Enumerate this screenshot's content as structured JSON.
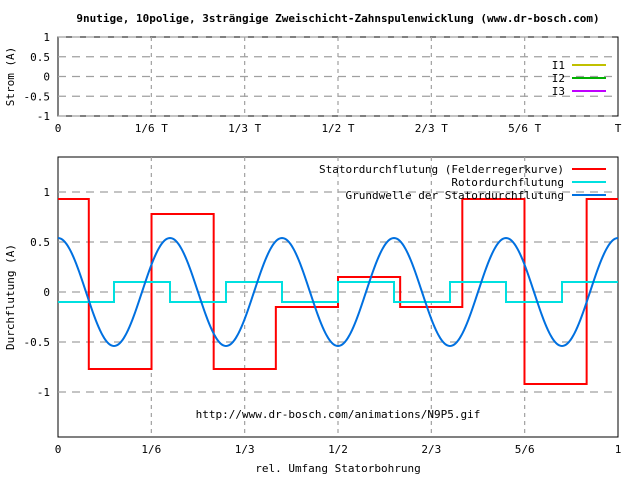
{
  "page_title": "9nutige, 10polige, 3strängige Zweischicht-Zahnspulenwicklung (www.dr-bosch.com)",
  "colors": {
    "I1": "#c0c000",
    "I2": "#00b000",
    "I3": "#c000ff",
    "stator": "#ff0000",
    "rotor": "#00e0e0",
    "fundamental": "#0070e0",
    "grid": "#a0a0a0",
    "zero_dash": "#a0a0a0",
    "background": "#ffffff"
  },
  "chart_data": [
    {
      "type": "line",
      "ylabel": "Strom (A)",
      "xlabel": "",
      "xlim": [
        0,
        1
      ],
      "ylim": [
        -1,
        1
      ],
      "x_ticks": [
        {
          "value": 0,
          "label": "0"
        },
        {
          "value": 0.16667,
          "label": "1/6 T"
        },
        {
          "value": 0.33333,
          "label": "1/3 T"
        },
        {
          "value": 0.5,
          "label": "1/2 T"
        },
        {
          "value": 0.66667,
          "label": "2/3 T"
        },
        {
          "value": 0.83333,
          "label": "5/6 T"
        },
        {
          "value": 1,
          "label": "T"
        }
      ],
      "y_ticks": [
        {
          "value": 1,
          "label": "1"
        },
        {
          "value": 0.5,
          "label": "0.5"
        },
        {
          "value": 0,
          "label": "0"
        },
        {
          "value": -0.5,
          "label": "-0.5"
        },
        {
          "value": -1,
          "label": "-1"
        }
      ],
      "grid": true,
      "legend_position": "right",
      "series": [
        {
          "name": "I1",
          "values": []
        },
        {
          "name": "I2",
          "values": []
        },
        {
          "name": "I3",
          "values": []
        }
      ]
    },
    {
      "type": "line",
      "ylabel": "Durchflutung (A)",
      "xlabel": "rel. Umfang Statorbohrung",
      "xlim": [
        0,
        1
      ],
      "ylim": [
        -1.45,
        1.35
      ],
      "x_ticks": [
        {
          "value": 0,
          "label": "0"
        },
        {
          "value": 0.16667,
          "label": "1/6"
        },
        {
          "value": 0.33333,
          "label": "1/3"
        },
        {
          "value": 0.5,
          "label": "1/2"
        },
        {
          "value": 0.66667,
          "label": "2/3"
        },
        {
          "value": 0.83333,
          "label": "5/6"
        },
        {
          "value": 1,
          "label": "1"
        }
      ],
      "y_ticks": [
        {
          "value": 1,
          "label": "1"
        },
        {
          "value": 0.5,
          "label": "0.5"
        },
        {
          "value": 0,
          "label": "0"
        },
        {
          "value": -0.5,
          "label": "-0.5"
        },
        {
          "value": -1,
          "label": "-1"
        }
      ],
      "grid": true,
      "legend_position": "top-right",
      "annotation": "http://www.dr-bosch.com/animations/N9P5.gif",
      "series": [
        {
          "name": "Statordurchflutung (Felderregerkurve)",
          "kind": "step",
          "x": [
            0,
            0.055,
            0.055,
            0.167,
            0.167,
            0.278,
            0.278,
            0.389,
            0.389,
            0.5,
            0.5,
            0.611,
            0.611,
            0.722,
            0.722,
            0.833,
            0.833,
            0.944,
            0.944,
            1
          ],
          "y": [
            0.93,
            0.93,
            -0.77,
            -0.77,
            0.78,
            0.78,
            -0.77,
            -0.77,
            -0.15,
            -0.15,
            0.15,
            0.15,
            -0.15,
            -0.15,
            0.93,
            0.93,
            -0.92,
            -0.92,
            0.93,
            0.93
          ]
        },
        {
          "name": "Rotordurchflutung",
          "kind": "step",
          "x": [
            0,
            0.1,
            0.1,
            0.2,
            0.2,
            0.3,
            0.3,
            0.4,
            0.4,
            0.5,
            0.5,
            0.6,
            0.6,
            0.7,
            0.7,
            0.8,
            0.8,
            0.9,
            0.9,
            1
          ],
          "y": [
            -0.1,
            -0.1,
            0.1,
            0.1,
            -0.1,
            -0.1,
            0.1,
            0.1,
            -0.1,
            -0.1,
            0.1,
            0.1,
            -0.1,
            -0.1,
            0.1,
            0.1,
            -0.1,
            -0.1,
            0.1,
            0.1
          ]
        },
        {
          "name": "Grundwelle der Statordurchflutung",
          "kind": "sine",
          "amplitude": 0.54,
          "periods": 5,
          "phase_deg": 90
        }
      ]
    }
  ]
}
